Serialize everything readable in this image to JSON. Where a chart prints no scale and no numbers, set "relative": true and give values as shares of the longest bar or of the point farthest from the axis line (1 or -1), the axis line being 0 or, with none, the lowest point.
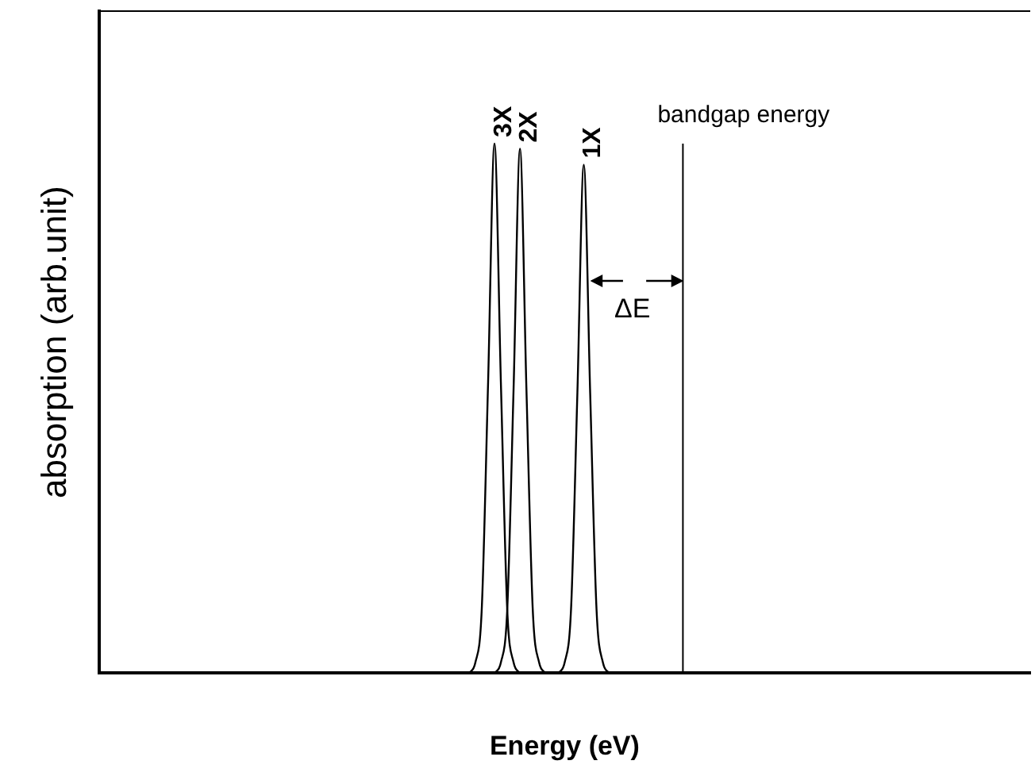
{
  "chart_data": {
    "type": "line",
    "relative": true,
    "xlabel": "Energy (eV)",
    "ylabel": "absorption (arb.unit)",
    "legend": false,
    "grid": false,
    "marker": "none",
    "line_style": "solid",
    "categories": [
      null,
      null,
      null,
      null,
      null,
      null,
      null,
      null,
      null,
      null,
      null,
      null,
      null,
      null,
      null,
      null,
      null,
      null,
      null,
      null,
      null,
      null,
      null,
      null,
      null,
      null,
      null,
      null,
      null,
      null,
      null,
      null,
      null,
      null,
      null,
      null,
      null,
      null,
      null,
      null,
      null,
      null,
      null,
      null,
      null,
      null,
      null,
      null,
      null,
      null,
      null,
      null,
      null,
      null,
      null,
      null,
      null,
      null,
      null,
      null,
      null,
      null,
      null,
      null,
      null,
      null,
      null,
      null,
      null,
      null,
      null,
      null,
      null,
      null,
      null,
      null,
      null,
      null,
      null,
      null,
      null,
      null,
      null,
      null,
      null,
      null,
      null,
      null,
      null,
      null,
      null,
      null,
      null,
      null,
      null,
      null,
      null,
      null,
      null,
      null,
      null,
      null,
      null,
      null,
      null,
      null,
      null,
      null,
      null,
      null,
      null,
      null,
      null,
      null,
      null,
      null,
      null,
      null,
      null,
      null,
      null,
      null,
      null,
      null,
      null,
      null,
      null,
      null,
      null,
      null,
      null,
      null,
      null,
      null,
      null,
      null,
      null,
      null,
      null,
      null,
      null,
      null,
      null,
      null,
      null,
      null,
      null
    ],
    "series": [
      {
        "name": "3X",
        "color": "#000000",
        "values": [
          null,
          null,
          null,
          null,
          null,
          null,
          null,
          null,
          null,
          null,
          null,
          null,
          null,
          null,
          null,
          null,
          null,
          null,
          null,
          null,
          null,
          null,
          null,
          null,
          null,
          null,
          null,
          null,
          null,
          null,
          null,
          null,
          null,
          null,
          null,
          null,
          null,
          null,
          null,
          null,
          null,
          null,
          null,
          null,
          null,
          null,
          null,
          null,
          null,
          null,
          null,
          null,
          null,
          null,
          null,
          null,
          null,
          null,
          0,
          0.02,
          0.12,
          0.55,
          1,
          0.55,
          0.12,
          0.02,
          0,
          null,
          null,
          null,
          null,
          null,
          null,
          null,
          null,
          null,
          null,
          null,
          null,
          null,
          null,
          null,
          null,
          null,
          null,
          null,
          null,
          null,
          null,
          null,
          null,
          null,
          null,
          null,
          null,
          null,
          null,
          null,
          null,
          null,
          null,
          null,
          null,
          null,
          null,
          null,
          null,
          null,
          null,
          null,
          null,
          null,
          null,
          null,
          null,
          null,
          null,
          null,
          null,
          null,
          null,
          null,
          null,
          null,
          null,
          null,
          null,
          null,
          null,
          null,
          null,
          null,
          null,
          null,
          null,
          null,
          null,
          null,
          null,
          null,
          null,
          null,
          null,
          null,
          null,
          null,
          null
        ]
      },
      {
        "name": "2X",
        "color": "#000000",
        "values": [
          null,
          null,
          null,
          null,
          null,
          null,
          null,
          null,
          null,
          null,
          null,
          null,
          null,
          null,
          null,
          null,
          null,
          null,
          null,
          null,
          null,
          null,
          null,
          null,
          null,
          null,
          null,
          null,
          null,
          null,
          null,
          null,
          null,
          null,
          null,
          null,
          null,
          null,
          null,
          null,
          null,
          null,
          null,
          null,
          null,
          null,
          null,
          null,
          null,
          null,
          null,
          null,
          null,
          null,
          null,
          null,
          null,
          null,
          null,
          null,
          null,
          null,
          0,
          0.02,
          0.12,
          0.54,
          0.99,
          0.54,
          0.12,
          0.02,
          0,
          null,
          null,
          null,
          null,
          null,
          null,
          null,
          null,
          null,
          null,
          null,
          null,
          null,
          null,
          null,
          null,
          null,
          null,
          null,
          null,
          null,
          null,
          null,
          null,
          null,
          null,
          null,
          null,
          null,
          null,
          null,
          null,
          null,
          null,
          null,
          null,
          null,
          null,
          null,
          null,
          null,
          null,
          null,
          null,
          null,
          null,
          null,
          null,
          null,
          null,
          null,
          null,
          null,
          null,
          null,
          null,
          null,
          null,
          null,
          null,
          null,
          null,
          null,
          null,
          null,
          null,
          null,
          null,
          null,
          null,
          null,
          null,
          null,
          null,
          null,
          null
        ]
      },
      {
        "name": "1X",
        "color": "#000000",
        "values": [
          null,
          null,
          null,
          null,
          null,
          null,
          null,
          null,
          null,
          null,
          null,
          null,
          null,
          null,
          null,
          null,
          null,
          null,
          null,
          null,
          null,
          null,
          null,
          null,
          null,
          null,
          null,
          null,
          null,
          null,
          null,
          null,
          null,
          null,
          null,
          null,
          null,
          null,
          null,
          null,
          null,
          null,
          null,
          null,
          null,
          null,
          null,
          null,
          null,
          null,
          null,
          null,
          null,
          null,
          null,
          null,
          null,
          null,
          null,
          null,
          null,
          null,
          null,
          null,
          null,
          null,
          null,
          null,
          null,
          null,
          null,
          null,
          0,
          0.02,
          0.12,
          0.53,
          0.96,
          0.53,
          0.12,
          0.02,
          0,
          null,
          null,
          null,
          null,
          null,
          null,
          null,
          null,
          null,
          null,
          null,
          null,
          null,
          null,
          null,
          null,
          null,
          null,
          null,
          null,
          null,
          null,
          null,
          null,
          null,
          null,
          null,
          null,
          null,
          null,
          null,
          null,
          null,
          null,
          null,
          null,
          null,
          null,
          null,
          null,
          null,
          null,
          null,
          null,
          null,
          null,
          null,
          null,
          null,
          null,
          null,
          null,
          null,
          null,
          null,
          null,
          null,
          null,
          null,
          null,
          null,
          null,
          null,
          null,
          null,
          null
        ]
      }
    ],
    "annotations": [
      "bandgap energy",
      "ΔE"
    ]
  }
}
